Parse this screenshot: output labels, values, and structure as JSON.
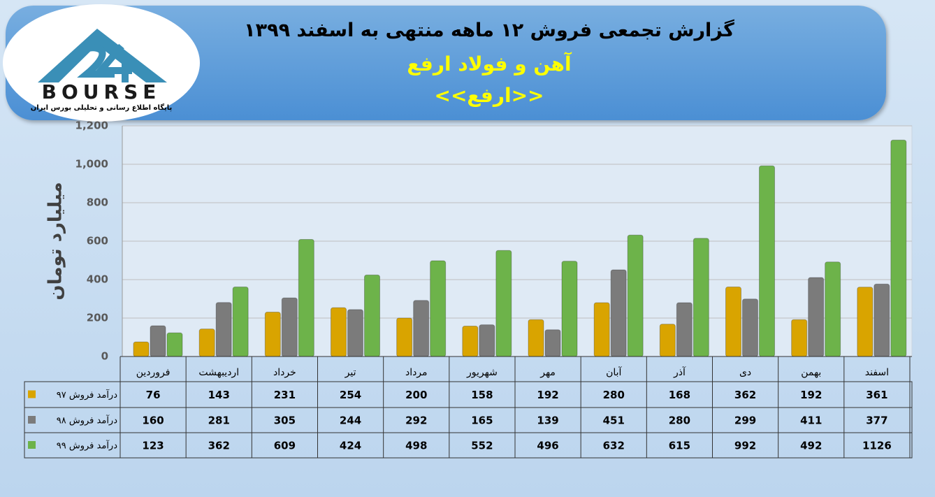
{
  "chart_data": {
    "type": "bar",
    "title": "گزارش تجمعی فروش ۱۲ ماهه منتهی به اسفند ۱۳۹۹",
    "subtitle": "آهن و فولاد ارفع",
    "symbol": "<<ارفع>>",
    "logo": {
      "name": "BOURSE",
      "tagline": "پایگاه اطلاع رسانی و تحلیلی بورس ایران"
    },
    "y_label": "میلیارد تومان",
    "categories": [
      "فروردین",
      "اردیبهشت",
      "خرداد",
      "تیر",
      "مرداد",
      "شهریور",
      "مهر",
      "آبان",
      "آذر",
      "دی",
      "بهمن",
      "اسفند"
    ],
    "series": [
      {
        "name": "درآمد فروش ۹۷",
        "color": "#d9a400",
        "values": [
          76,
          143,
          231,
          254,
          200,
          158,
          192,
          280,
          168,
          362,
          192,
          361
        ]
      },
      {
        "name": "درآمد فروش ۹۸",
        "color": "#7b7b7b",
        "values": [
          160,
          281,
          305,
          244,
          292,
          165,
          139,
          451,
          280,
          299,
          411,
          377
        ]
      },
      {
        "name": "درآمد فروش ۹۹",
        "color": "#6db34a",
        "values": [
          123,
          362,
          609,
          424,
          498,
          552,
          496,
          632,
          615,
          992,
          492,
          1126
        ]
      }
    ],
    "ylim": [
      0,
      1200
    ],
    "yticks": [
      0,
      200,
      400,
      600,
      800,
      {
        "value": 1000,
        "label": "1,000"
      },
      {
        "value": 1200,
        "label": "1,200"
      }
    ],
    "grid": true
  }
}
